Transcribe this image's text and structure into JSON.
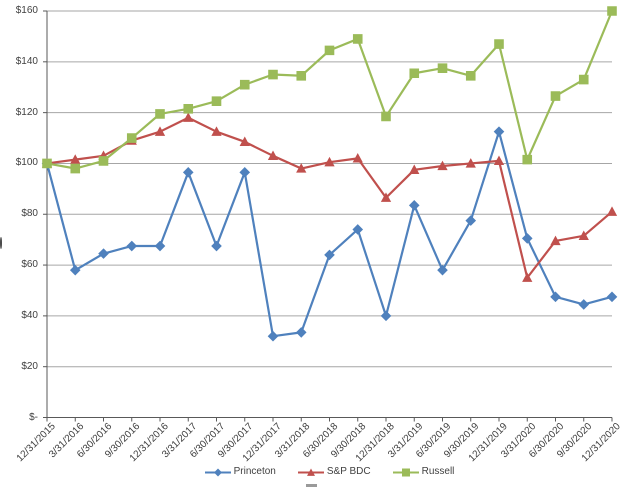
{
  "chart_data": {
    "type": "line",
    "title": "",
    "xlabel": "",
    "ylabel": "",
    "categories": [
      "12/31/2015",
      "3/31/2016",
      "6/30/2016",
      "9/30/2016",
      "12/31/2016",
      "3/31/2017",
      "6/30/2017",
      "9/30/2017",
      "12/31/2017",
      "3/31/2018",
      "6/30/2018",
      "9/30/2018",
      "12/31/2018",
      "3/31/2019",
      "6/30/2019",
      "9/30/2019",
      "12/31/2019",
      "3/31/2020",
      "6/30/2020",
      "9/30/2020",
      "12/31/2020"
    ],
    "series": [
      {
        "name": "Princeton",
        "color": "#4F81BD",
        "marker": "diamond",
        "values": [
          100,
          58,
          64.5,
          67.5,
          67.5,
          96.5,
          67.5,
          96.5,
          32,
          33.5,
          64,
          74,
          40,
          83.5,
          58,
          77.5,
          112.5,
          70.5,
          47.5,
          44.5,
          47.5
        ]
      },
      {
        "name": "S&P BDC",
        "color": "#C0504D",
        "marker": "triangle",
        "values": [
          100,
          101.5,
          103,
          109,
          112.5,
          118,
          112.5,
          108.5,
          103,
          98,
          100.5,
          102,
          86.5,
          97.5,
          99,
          100,
          101,
          55,
          69.5,
          71.5,
          81
        ]
      },
      {
        "name": "Russell",
        "color": "#9BBB59",
        "marker": "square",
        "values": [
          100,
          98,
          101,
          110,
          119.5,
          121.5,
          124.5,
          131,
          135,
          134.5,
          144.5,
          149,
          118.5,
          135.5,
          137.5,
          134.5,
          147,
          101.5,
          126.5,
          133,
          160
        ]
      }
    ],
    "ylim": [
      0,
      160
    ],
    "y_tick_step": 20,
    "y_tick_labels": [
      "$-",
      "$20",
      "$40",
      "$60",
      "$80",
      "$100",
      "$120",
      "$140",
      "$160"
    ],
    "x_tick_rotation": 45,
    "grid": true,
    "legend_position": "bottom",
    "colors": {
      "gridline": "#A6A6A6",
      "axis": "#595959",
      "label": "#404040",
      "background": "#FFFFFF"
    }
  }
}
